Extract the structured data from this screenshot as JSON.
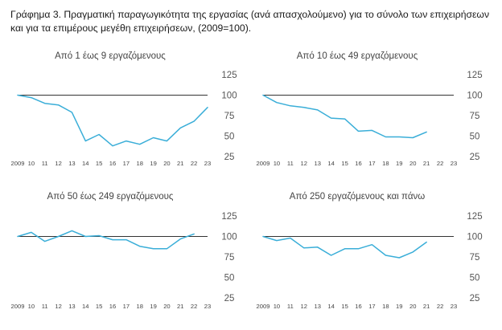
{
  "figure": {
    "title": "Γράφημα 3. Πραγματική παραγωγικότητα της εργασίας (ανά απασχολούμενο) για το σύνολο των επιχειρήσεων και για τα επιμέρους μεγέθη επιχειρήσεων, (2009=100)."
  },
  "colors": {
    "line": "#3aaed8",
    "reference": "#333333"
  },
  "chart_data": [
    {
      "type": "line",
      "title": "Από 1 έως 9 εργαζόμενους",
      "x": [
        "2009",
        "10",
        "11",
        "12",
        "13",
        "14",
        "15",
        "16",
        "17",
        "18",
        "19",
        "20",
        "21",
        "22",
        "23"
      ],
      "series": [
        {
          "values": [
            100,
            97,
            90,
            88,
            79,
            44,
            52,
            38,
            44,
            40,
            48,
            44,
            60,
            68,
            85
          ]
        }
      ],
      "ylim": [
        25,
        125
      ],
      "yticks": [
        "125",
        "100",
        "75",
        "50",
        "25"
      ],
      "reference_line": 100,
      "grid": false
    },
    {
      "type": "line",
      "title": "Από 10 έως 49 εργαζόμενους",
      "x": [
        "2009",
        "10",
        "11",
        "12",
        "13",
        "14",
        "15",
        "16",
        "17",
        "18",
        "19",
        "20",
        "21",
        "22",
        "23"
      ],
      "series": [
        {
          "values": [
            100,
            91,
            87,
            85,
            82,
            72,
            71,
            56,
            57,
            49,
            49,
            48,
            55,
            null,
            null
          ]
        }
      ],
      "ylim": [
        25,
        125
      ],
      "yticks": [
        "125",
        "100",
        "75",
        "50",
        "25"
      ],
      "reference_line": 100,
      "grid": false
    },
    {
      "type": "line",
      "title": "Από 50 έως 249 εργαζόμενους",
      "x": [
        "2009",
        "10",
        "11",
        "12",
        "13",
        "14",
        "15",
        "16",
        "17",
        "18",
        "19",
        "20",
        "21",
        "22",
        "23"
      ],
      "series": [
        {
          "values": [
            100,
            105,
            94,
            100,
            107,
            100,
            101,
            96,
            96,
            88,
            85,
            85,
            97,
            103,
            null
          ]
        }
      ],
      "ylim": [
        25,
        125
      ],
      "yticks": [
        "125",
        "100",
        "75",
        "50",
        "25"
      ],
      "reference_line": 100,
      "grid": false
    },
    {
      "type": "line",
      "title": "Από 250 εργαζόμενους και πάνω",
      "x": [
        "2009",
        "10",
        "11",
        "12",
        "13",
        "14",
        "15",
        "16",
        "17",
        "18",
        "19",
        "20",
        "21",
        "22",
        "23"
      ],
      "series": [
        {
          "values": [
            100,
            95,
            98,
            86,
            87,
            77,
            85,
            85,
            90,
            77,
            74,
            81,
            93,
            null,
            null
          ]
        }
      ],
      "ylim": [
        25,
        125
      ],
      "yticks": [
        "125",
        "100",
        "75",
        "50",
        "25"
      ],
      "reference_line": 100,
      "grid": false
    }
  ]
}
